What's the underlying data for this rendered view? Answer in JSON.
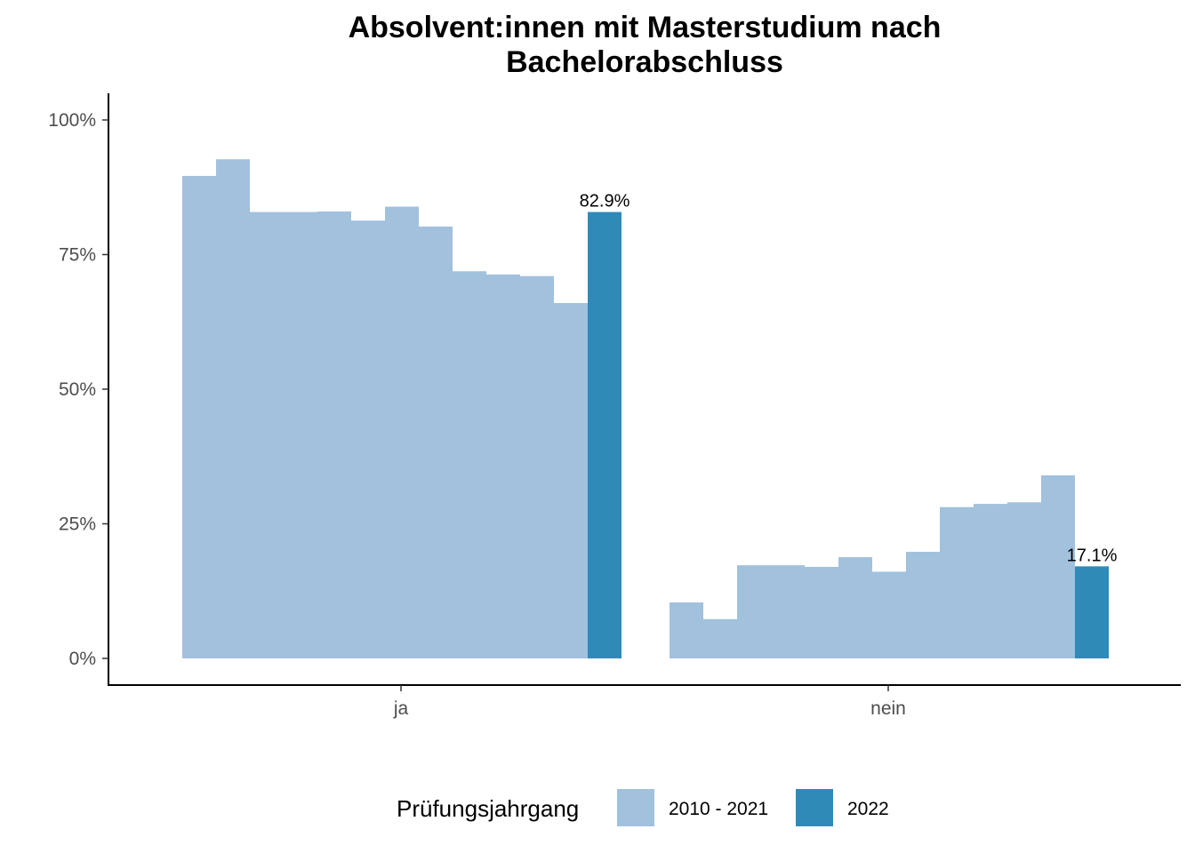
{
  "chart_data": {
    "type": "bar",
    "title_lines": [
      "Absolvent:innen mit Masterstudium nach",
      "Bachelorabschluss"
    ],
    "xlabel": "",
    "ylabel": "",
    "categories": [
      "ja",
      "nein"
    ],
    "ylim": [
      0,
      1.05
    ],
    "y_ticks": [
      {
        "value": 0,
        "label": "0%"
      },
      {
        "value": 0.25,
        "label": "25%"
      },
      {
        "value": 0.5,
        "label": "50%"
      },
      {
        "value": 0.75,
        "label": "75%"
      },
      {
        "value": 1.0,
        "label": "100%"
      }
    ],
    "grid": false,
    "legend": {
      "title": "Prüfungsjahrgang",
      "position": "bottom",
      "entries": [
        {
          "label": "2010 - 2021",
          "color": "#a1c1dd"
        },
        {
          "label": "2022",
          "color": "#2f8ab8"
        }
      ]
    },
    "groups": [
      {
        "category": "ja",
        "values_2010_2021": [
          0.896,
          0.927,
          0.829,
          0.829,
          0.83,
          0.813,
          0.839,
          0.802,
          0.719,
          0.713,
          0.71,
          0.66
        ],
        "value_2022": 0.829,
        "label_2022": "82.9%"
      },
      {
        "category": "nein",
        "values_2010_2021": [
          0.104,
          0.073,
          0.173,
          0.173,
          0.17,
          0.188,
          0.161,
          0.198,
          0.281,
          0.287,
          0.29,
          0.34
        ],
        "value_2022": 0.171,
        "label_2022": "17.1%"
      }
    ]
  }
}
